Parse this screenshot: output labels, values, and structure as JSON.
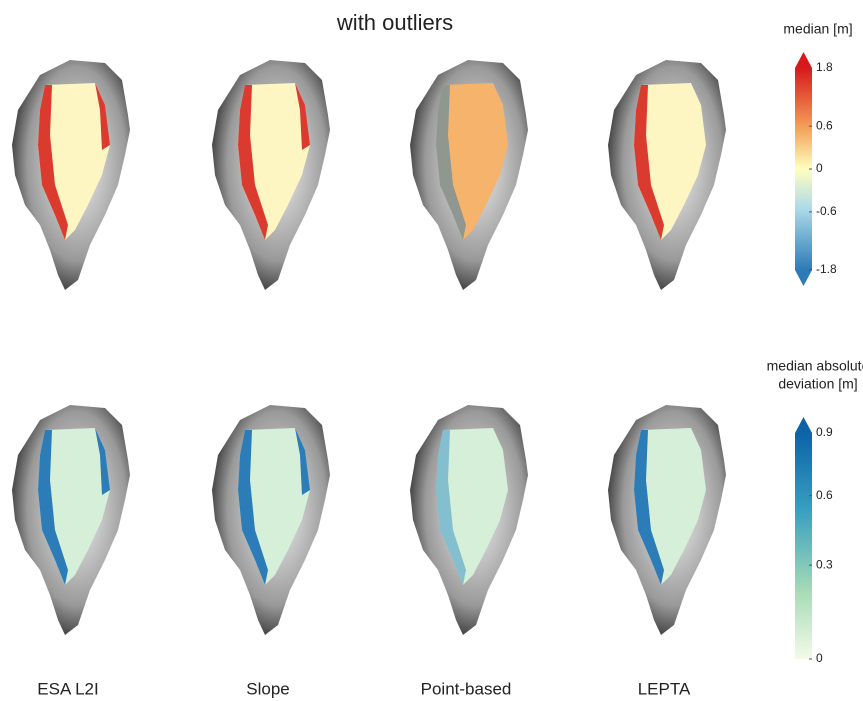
{
  "title": "with outliers",
  "columns": [
    "ESA L2I",
    "Slope",
    "Point-based",
    "LEPTA"
  ],
  "colorbars": [
    {
      "label": [
        "median [m]"
      ],
      "ticks": [
        1.8,
        0.6,
        0,
        -0.6,
        -1.8
      ],
      "lim": [
        -1.8,
        1.8
      ]
    },
    {
      "label": [
        "median absolute",
        "deviation [m]"
      ],
      "ticks": [
        0.9,
        0.6,
        0.3,
        0
      ],
      "lim": [
        0,
        0.9
      ]
    }
  ]
}
